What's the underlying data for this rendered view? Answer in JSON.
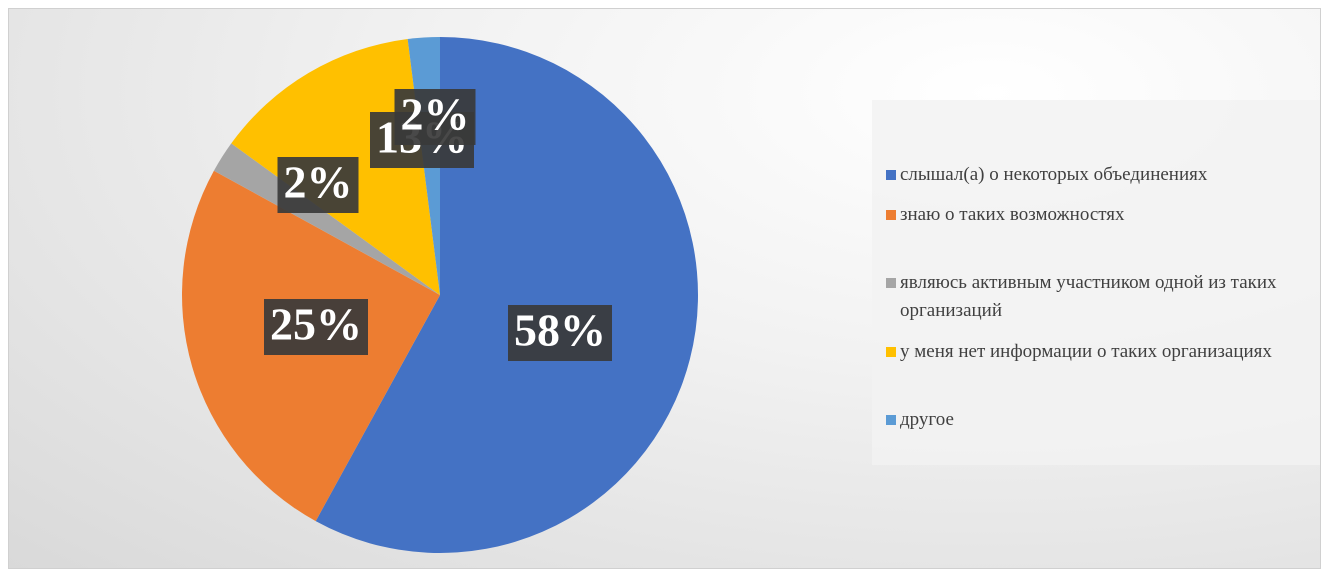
{
  "chart_data": {
    "type": "pie",
    "categories": [
      "слышал(а) о некоторых объединениях",
      "знаю о таких возможностях",
      "являюсь активным участником одной из таких организаций",
      "у меня нет информации о таких организациях",
      "другое"
    ],
    "values": [
      58,
      25,
      2,
      13,
      2
    ],
    "value_labels": [
      "58%",
      "25%",
      "2%",
      "13%",
      "2%"
    ],
    "colors": [
      "#4472c4",
      "#ed7d31",
      "#a5a5a5",
      "#ffc000",
      "#5b9bd5"
    ],
    "legend": "right"
  }
}
